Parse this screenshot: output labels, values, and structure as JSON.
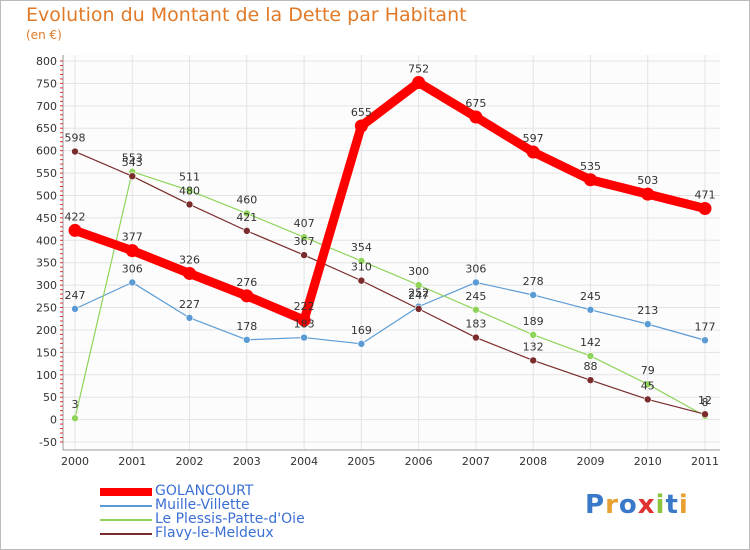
{
  "chart_data": {
    "type": "line",
    "title": "Evolution du Montant de la Dette par Habitant",
    "subtitle": "(en €)",
    "x": [
      "2000",
      "2001",
      "2002",
      "2003",
      "2004",
      "2005",
      "2006",
      "2007",
      "2008",
      "2009",
      "2010",
      "2011"
    ],
    "yticks": [
      "-50",
      "0",
      "50",
      "100",
      "150",
      "200",
      "250",
      "300",
      "350",
      "400",
      "450",
      "500",
      "550",
      "600",
      "650",
      "700",
      "750",
      "800"
    ],
    "ylim": [
      -50,
      800
    ],
    "grid": true,
    "legend_position": "bottom-left",
    "series": [
      {
        "name": "GOLANCOURT",
        "color": "#ff0000",
        "width": 9,
        "values": [
          422,
          377,
          326,
          276,
          222,
          655,
          752,
          675,
          597,
          535,
          503,
          471
        ],
        "labels": [
          "422",
          "377",
          "326",
          "276",
          "222",
          "655",
          "752",
          "675",
          "597",
          "535",
          "503",
          "471"
        ]
      },
      {
        "name": "Muille-Villette",
        "color": "#5b9bd5",
        "width": 1.2,
        "values": [
          247,
          306,
          227,
          178,
          183,
          169,
          252,
          306,
          278,
          245,
          213,
          177
        ],
        "labels": [
          "247",
          "306",
          "227",
          "178",
          "183",
          "169",
          "252",
          "306",
          "278",
          "245",
          "213",
          "177"
        ]
      },
      {
        "name": "Le Plessis-Patte-d'Oie",
        "color": "#8fd45a",
        "width": 1.2,
        "values": [
          3,
          553,
          511,
          460,
          407,
          354,
          300,
          245,
          189,
          142,
          79,
          8
        ],
        "labels": [
          "3",
          "553",
          "511",
          "460",
          "407",
          "354",
          "300",
          "245",
          "189",
          "142",
          "79",
          "8"
        ]
      },
      {
        "name": "Flavy-le-Meldeux",
        "color": "#7a2b2b",
        "width": 1.2,
        "values": [
          598,
          543,
          480,
          421,
          367,
          310,
          247,
          183,
          132,
          88,
          45,
          12
        ],
        "labels": [
          "598",
          "543",
          "480",
          "421",
          "367",
          "310",
          "247",
          "183",
          "132",
          "88",
          "45",
          "12"
        ]
      }
    ]
  },
  "branding": {
    "letters": [
      "P",
      "r",
      "o",
      "x",
      "i",
      "t",
      "i"
    ],
    "colors": [
      "#3a78c9",
      "#e8a030",
      "#3a78c9",
      "#e03030",
      "#8cc63f",
      "#3a78c9",
      "#e8a030"
    ]
  }
}
